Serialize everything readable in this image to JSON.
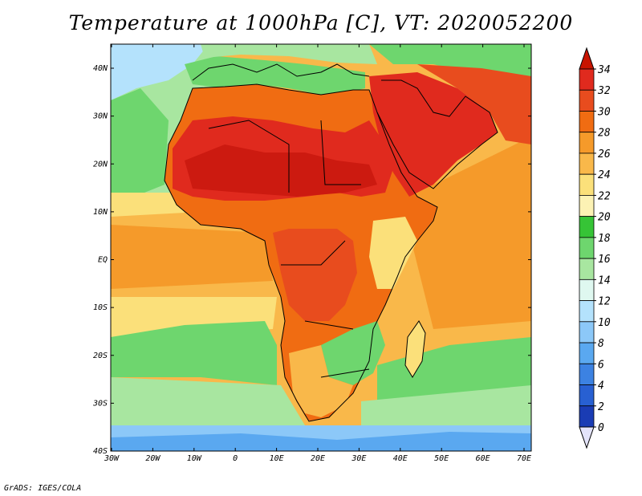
{
  "title": "Temperature at 1000hPa [C], VT: 2020052200",
  "credit": "GrADS: IGES/COLA",
  "lon_ticks": [
    "30W",
    "20W",
    "10W",
    "0",
    "10E",
    "20E",
    "30E",
    "40E",
    "50E",
    "60E",
    "70E"
  ],
  "lat_ticks": [
    "40N",
    "30N",
    "20N",
    "10N",
    "EQ",
    "10S",
    "20S",
    "30S",
    "40S"
  ],
  "colorbar": {
    "labels": [
      "34",
      "32",
      "30",
      "28",
      "26",
      "24",
      "22",
      "20",
      "18",
      "16",
      "14",
      "12",
      "10",
      "8",
      "6",
      "4",
      "2",
      "0"
    ],
    "colors": [
      "#e02a1e",
      "#e84c1e",
      "#f06c12",
      "#f59a2a",
      "#f9b84a",
      "#fbe07a",
      "#fcf2b4",
      "#36c436",
      "#6ed66e",
      "#a8e6a0",
      "#dff8f0",
      "#b4e2fc",
      "#8cc8f8",
      "#5aa8f0",
      "#3c82e2",
      "#2860d2",
      "#1a3cb4",
      "#0a1890",
      "#e8e8fc"
    ],
    "top_color": "#c81400",
    "bottom_color": "#e4e4fa"
  },
  "palette": {
    "ocean_cool": "#a8e6a0",
    "ocean_mid": "#f9b84a",
    "ocean_warm": "#f59a2a",
    "land_hot": "#e02a1e",
    "land_very_hot": "#cc1a10",
    "land_warm": "#f06c12",
    "land_mild": "#fbe07a",
    "land_green": "#6ed66e",
    "cold_water": "#8cc8f8",
    "coast": "#000000"
  }
}
